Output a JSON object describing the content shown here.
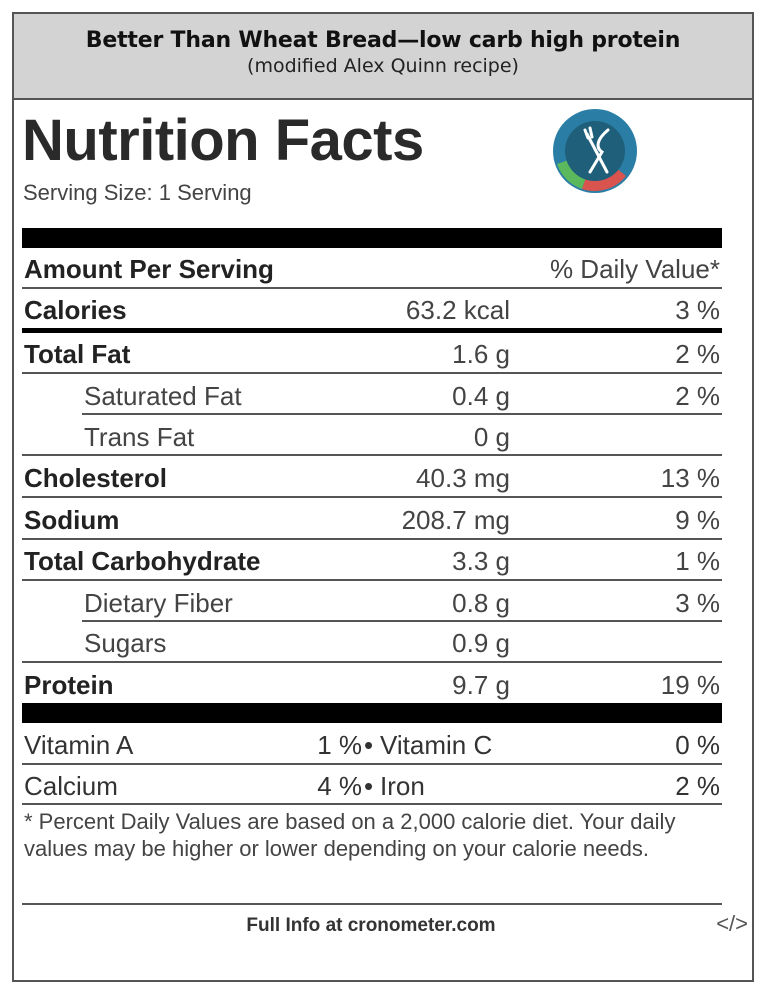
{
  "header": {
    "title": "Better Than Wheat Bread—low carb high protein",
    "subtitle": "(modified Alex Quinn recipe)"
  },
  "label": {
    "title": "Nutrition Facts",
    "serving_size": "Serving Size: 1 Serving",
    "amount_per_serving": "Amount Per Serving",
    "daily_value_header": "% Daily Value*",
    "logo_icon": "cronometer-fork-knife-icon",
    "colors": {
      "logo_ring": "#2a7ea6",
      "logo_green": "#5cb85c",
      "logo_red": "#d9534f",
      "logo_dark": "#1f5f7a"
    }
  },
  "nutrients": [
    {
      "name": "Calories",
      "amount": "63.2 kcal",
      "dv": "3 %"
    },
    {
      "name": "Total Fat",
      "amount": "1.6 g",
      "dv": "2 %"
    },
    {
      "name": "Saturated Fat",
      "amount": "0.4 g",
      "dv": "2 %"
    },
    {
      "name": "Trans Fat",
      "amount": "0 g",
      "dv": ""
    },
    {
      "name": "Cholesterol",
      "amount": "40.3 mg",
      "dv": "13 %"
    },
    {
      "name": "Sodium",
      "amount": "208.7 mg",
      "dv": "9 %"
    },
    {
      "name": "Total Carbohydrate",
      "amount": "3.3 g",
      "dv": "1 %"
    },
    {
      "name": "Dietary Fiber",
      "amount": "0.8 g",
      "dv": "3 %"
    },
    {
      "name": "Sugars",
      "amount": "0.9 g",
      "dv": ""
    },
    {
      "name": "Protein",
      "amount": "9.7 g",
      "dv": "19 %"
    }
  ],
  "vitamins": [
    {
      "left_name": "Vitamin A",
      "left_pct": "1 %",
      "right_name": "Vitamin C",
      "right_pct": "0 %"
    },
    {
      "left_name": "Calcium",
      "left_pct": "4 %",
      "right_name": "Iron",
      "right_pct": "2 %"
    }
  ],
  "footnote": "* Percent Daily Values are based on a 2,000 calorie diet. Your daily values may be higher or lower depending on your calorie needs.",
  "footer": {
    "full_info": "Full Info at cronometer.com",
    "embed_icon_text": "</>"
  }
}
